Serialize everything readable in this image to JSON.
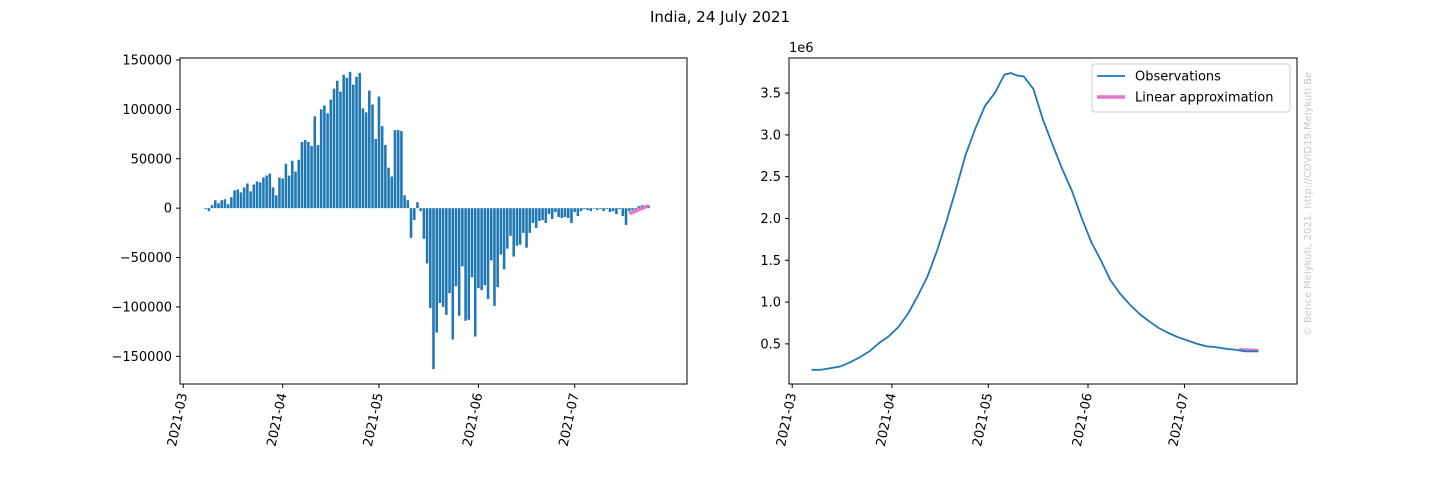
{
  "figure": {
    "title": "India, 24 July 2021",
    "watermark": "© Bence Melykuti, 2021. http://COVID19.Melykuti.Be"
  },
  "colors": {
    "bars": "#1f77b4",
    "observations": "#1f77b4",
    "linear": "#e377c2",
    "axis": "#000000",
    "watermark": "#c8c8c8"
  },
  "chart_data": [
    {
      "type": "bar",
      "title": "",
      "xlabel": "",
      "ylabel": "",
      "x_ticks": [
        {
          "label": "2021-03",
          "date": "2021-03-01"
        },
        {
          "label": "2021-04",
          "date": "2021-04-01"
        },
        {
          "label": "2021-05",
          "date": "2021-05-01"
        },
        {
          "label": "2021-06",
          "date": "2021-06-01"
        },
        {
          "label": "2021-07",
          "date": "2021-07-01"
        }
      ],
      "y_ticks": [
        150000,
        100000,
        50000,
        0,
        -50000,
        -100000,
        -150000
      ],
      "y_tick_labels": [
        "150000",
        "100000",
        "50000",
        "0",
        "−50000",
        "−100000",
        "−150000"
      ],
      "xlim": [
        "2021-02-28",
        "2021-08-05"
      ],
      "ylim": [
        -178000,
        152000
      ],
      "grid": false,
      "bars": {
        "start_date": "2021-03-08",
        "end_date": "2021-07-24",
        "values": [
          -1000,
          -3000,
          3000,
          8000,
          5000,
          8000,
          9000,
          4000,
          11000,
          18000,
          19000,
          16000,
          21000,
          25000,
          17000,
          24000,
          27000,
          26000,
          31000,
          33000,
          35000,
          21000,
          13000,
          31000,
          30000,
          45000,
          33000,
          48000,
          37000,
          49000,
          67000,
          69000,
          67000,
          63000,
          93000,
          64000,
          100000,
          104000,
          96000,
          110000,
          121000,
          129000,
          118000,
          135000,
          132000,
          138000,
          125000,
          133000,
          137000,
          101000,
          97000,
          119000,
          105000,
          70000,
          113000,
          83000,
          64000,
          41000,
          32000,
          79000,
          79000,
          78000,
          13000,
          8000,
          -30000,
          -12000,
          6000,
          -3000,
          -31000,
          -56000,
          -101000,
          -163000,
          -126000,
          -96000,
          -100000,
          -108000,
          -86000,
          -133000,
          -79000,
          -109000,
          -59000,
          -114000,
          -113000,
          -70000,
          -130000,
          -81000,
          -83000,
          -78000,
          -92000,
          -53000,
          -99000,
          -80000,
          -47000,
          -62000,
          -41000,
          -28000,
          -49000,
          -38000,
          -37000,
          -25000,
          -40000,
          -25000,
          -15000,
          -20000,
          -13000,
          -12000,
          -15000,
          -6000,
          -11000,
          -4000,
          -9000,
          -10000,
          -9000,
          -10000,
          -15000,
          -4000,
          -8000,
          -3000,
          -1000,
          -2000,
          -3000,
          0,
          -2000,
          -1000,
          -3000,
          -1000,
          -4000,
          -3000,
          -6000,
          -1000,
          -8000,
          -17000,
          -3000,
          -2000,
          -1000,
          2000,
          3000,
          1000,
          3000
        ]
      },
      "series": [
        {
          "style": "pink-line",
          "x": [
            "2021-07-18",
            "2021-07-24"
          ],
          "y": [
            -5500,
            2500
          ]
        }
      ]
    },
    {
      "type": "line",
      "title": "",
      "xlabel": "",
      "ylabel": "",
      "y_offset_label": "1e6",
      "x_ticks": [
        {
          "label": "2021-03",
          "date": "2021-03-01"
        },
        {
          "label": "2021-04",
          "date": "2021-04-01"
        },
        {
          "label": "2021-05",
          "date": "2021-05-01"
        },
        {
          "label": "2021-06",
          "date": "2021-06-01"
        },
        {
          "label": "2021-07",
          "date": "2021-07-01"
        }
      ],
      "y_ticks": [
        0.5,
        1.0,
        1.5,
        2.0,
        2.5,
        3.0,
        3.5
      ],
      "y_tick_labels": [
        "0.5",
        "1.0",
        "1.5",
        "2.0",
        "2.5",
        "3.0",
        "3.5"
      ],
      "xlim": [
        "2021-02-28",
        "2021-08-05"
      ],
      "ylim": [
        0.02,
        3.92
      ],
      "grid": false,
      "legend_position": "top-right",
      "series": [
        {
          "name": "Observations",
          "style": "blue-line",
          "x": [
            "2021-03-07",
            "2021-03-10",
            "2021-03-13",
            "2021-03-16",
            "2021-03-19",
            "2021-03-22",
            "2021-03-25",
            "2021-03-28",
            "2021-03-31",
            "2021-04-03",
            "2021-04-06",
            "2021-04-09",
            "2021-04-12",
            "2021-04-15",
            "2021-04-18",
            "2021-04-21",
            "2021-04-24",
            "2021-04-27",
            "2021-04-30",
            "2021-05-03",
            "2021-05-06",
            "2021-05-08",
            "2021-05-10",
            "2021-05-12",
            "2021-05-15",
            "2021-05-18",
            "2021-05-21",
            "2021-05-24",
            "2021-05-27",
            "2021-05-30",
            "2021-06-02",
            "2021-06-05",
            "2021-06-08",
            "2021-06-11",
            "2021-06-14",
            "2021-06-17",
            "2021-06-20",
            "2021-06-23",
            "2021-06-26",
            "2021-06-29",
            "2021-07-02",
            "2021-07-05",
            "2021-07-08",
            "2021-07-11",
            "2021-07-14",
            "2021-07-17",
            "2021-07-20",
            "2021-07-24"
          ],
          "y": [
            0.19,
            0.19,
            0.21,
            0.23,
            0.28,
            0.34,
            0.41,
            0.51,
            0.59,
            0.7,
            0.86,
            1.07,
            1.3,
            1.61,
            1.97,
            2.36,
            2.77,
            3.08,
            3.35,
            3.5,
            3.72,
            3.74,
            3.71,
            3.7,
            3.55,
            3.18,
            2.88,
            2.59,
            2.33,
            2.01,
            1.72,
            1.5,
            1.26,
            1.1,
            0.97,
            0.86,
            0.77,
            0.69,
            0.63,
            0.58,
            0.54,
            0.5,
            0.47,
            0.46,
            0.44,
            0.43,
            0.41,
            0.41
          ]
        },
        {
          "name": "Linear approximation",
          "style": "pink-line",
          "x": [
            "2021-07-18",
            "2021-07-24"
          ],
          "y": [
            0.43,
            0.42
          ]
        }
      ]
    }
  ]
}
